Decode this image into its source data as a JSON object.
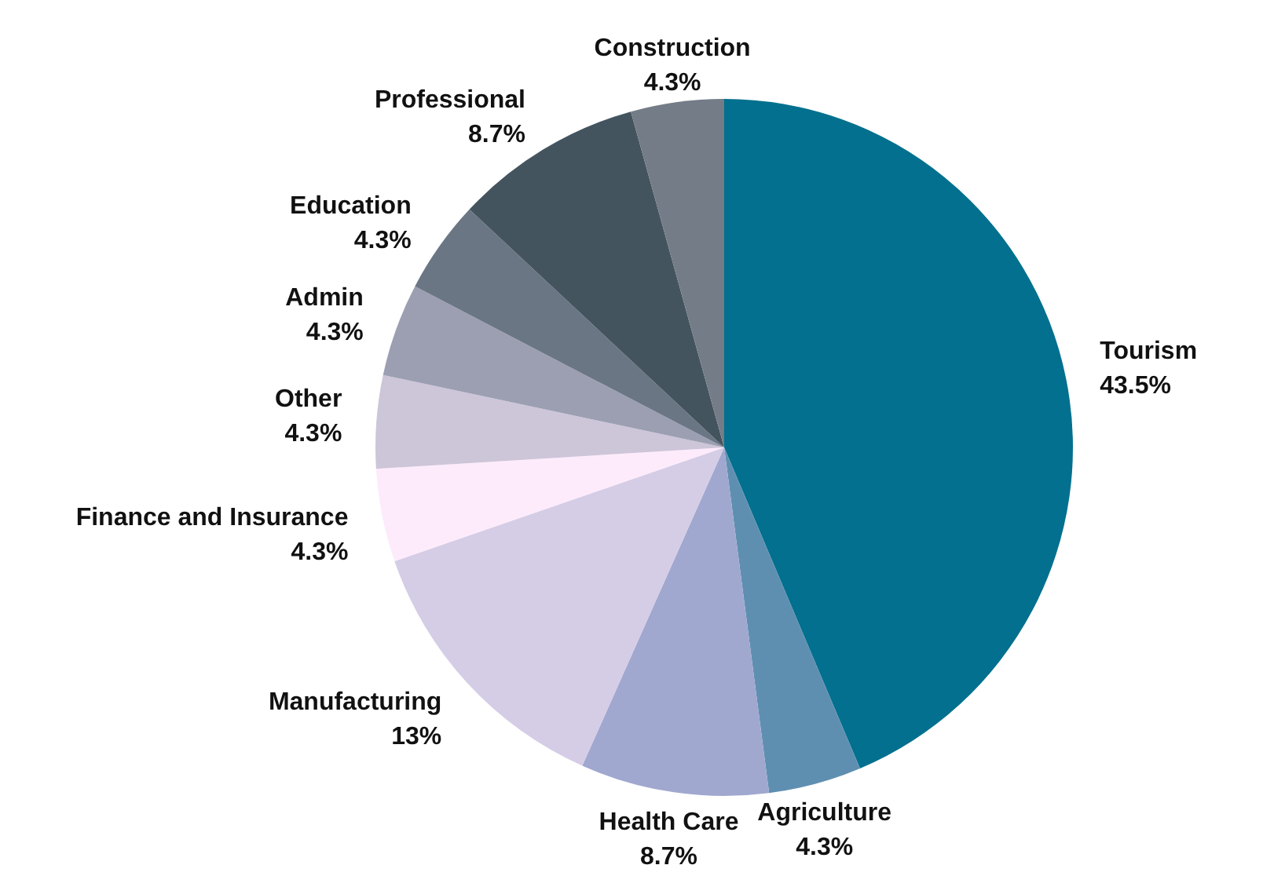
{
  "chart_data": {
    "type": "pie",
    "categories": [
      "Tourism",
      "Agriculture",
      "Health Care",
      "Manufacturing",
      "Finance and Insurance",
      "Other",
      "Admin",
      "Education",
      "Professional",
      "Construction"
    ],
    "values": [
      43.5,
      4.3,
      8.7,
      13,
      4.3,
      4.3,
      4.3,
      4.3,
      8.7,
      4.3
    ],
    "colors": [
      "#02708e",
      "#5f8fb0",
      "#a0a8cf",
      "#d5cce6",
      "#fdebfb",
      "#cdc5d8",
      "#9c9fb2",
      "#6b7684",
      "#44545f",
      "#737c87"
    ],
    "value_labels": [
      "43.5%",
      "4.3%",
      "8.7%",
      "13%",
      "4.3%",
      "4.3%",
      "4.3%",
      "4.3%",
      "8.7%",
      "4.3%"
    ]
  }
}
